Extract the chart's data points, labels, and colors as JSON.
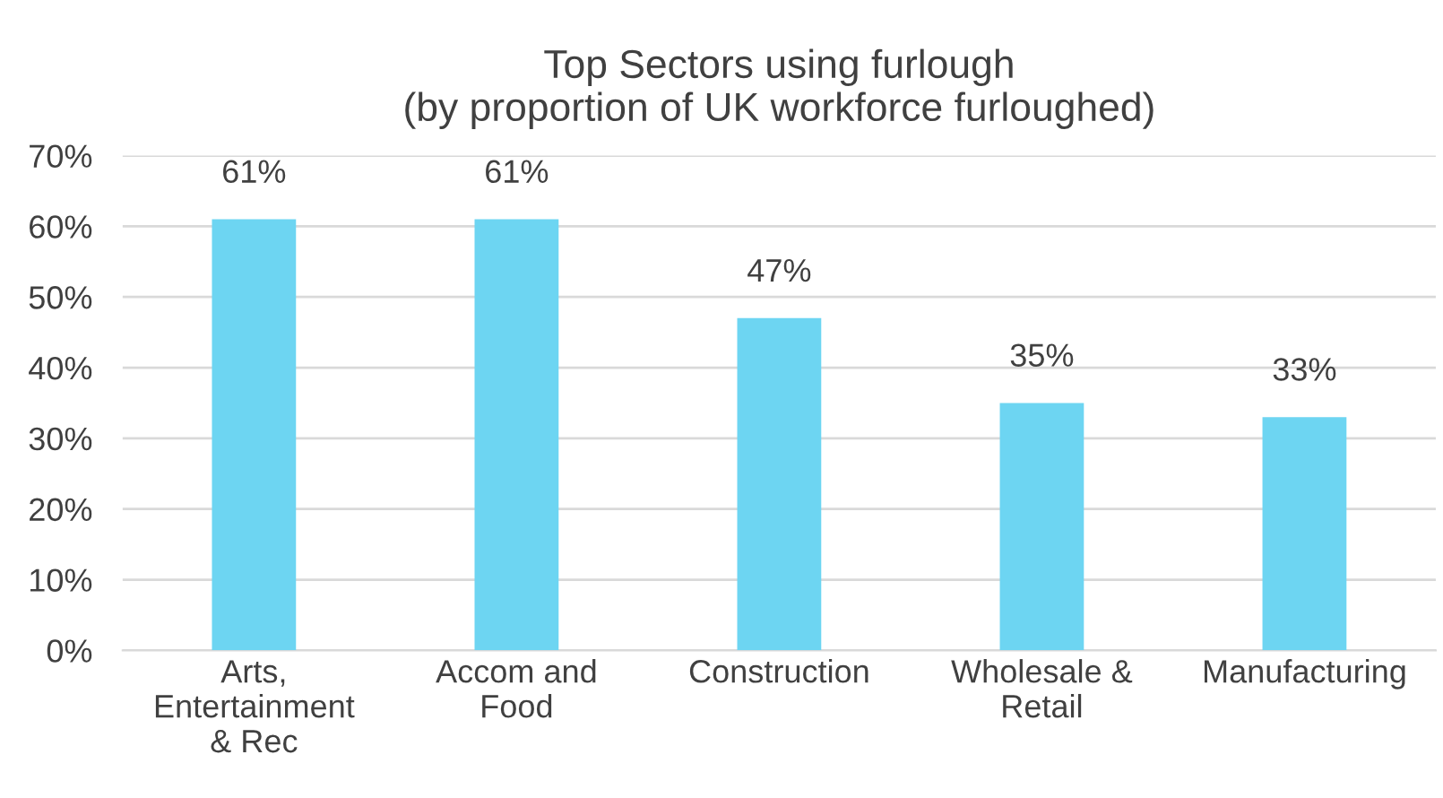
{
  "chart_data": {
    "type": "bar",
    "title": "Top Sectors using furlough\n(by proportion of UK workforce furloughed)",
    "categories": [
      "Arts,\nEntertainment\n& Rec",
      "Accom and\nFood",
      "Construction",
      "Wholesale &\nRetail",
      "Manufacturing"
    ],
    "values": [
      61,
      61,
      47,
      35,
      33
    ],
    "value_labels": [
      "61%",
      "61%",
      "47%",
      "35%",
      "33%"
    ],
    "color": "#6dd5f2",
    "ylim": [
      0,
      70
    ],
    "yticks": [
      {
        "value": 0,
        "label": "0%"
      },
      {
        "value": 10,
        "label": "10%"
      },
      {
        "value": 20,
        "label": "20%"
      },
      {
        "value": 30,
        "label": "30%"
      },
      {
        "value": 40,
        "label": "40%"
      },
      {
        "value": 50,
        "label": "50%"
      },
      {
        "value": 60,
        "label": "60%"
      },
      {
        "value": 70,
        "label": "70%"
      }
    ],
    "grid": "y"
  }
}
